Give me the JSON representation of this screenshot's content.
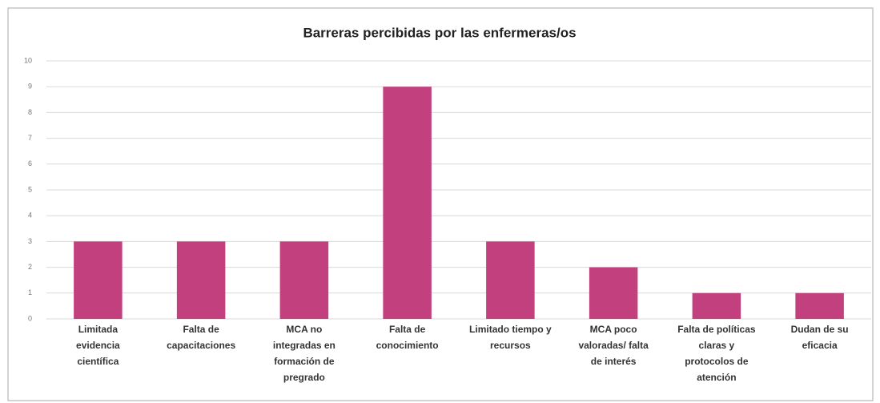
{
  "chart_data": {
    "type": "bar",
    "title": "Barreras percibidas por las enfermeras/os",
    "categories": [
      [
        "Limitada",
        "evidencia",
        "científica"
      ],
      [
        "Falta de",
        "capacitaciones"
      ],
      [
        "MCA no",
        "integradas en",
        "formación de",
        "pregrado"
      ],
      [
        "Falta de",
        "conocimiento"
      ],
      [
        "Limitado tiempo y",
        "recursos"
      ],
      [
        "MCA poco",
        "valoradas/ falta",
        "de interés"
      ],
      [
        "Falta de políticas",
        "claras y",
        "protocolos de",
        "atención"
      ],
      [
        "Dudan de su",
        "eficacia"
      ]
    ],
    "values": [
      3,
      3,
      3,
      9,
      3,
      2,
      1,
      1
    ],
    "color": "#c2407e",
    "ylim": [
      0,
      10
    ],
    "yticks": [
      0,
      1,
      2,
      3,
      4,
      5,
      6,
      7,
      8,
      9,
      10
    ],
    "grid": true
  }
}
